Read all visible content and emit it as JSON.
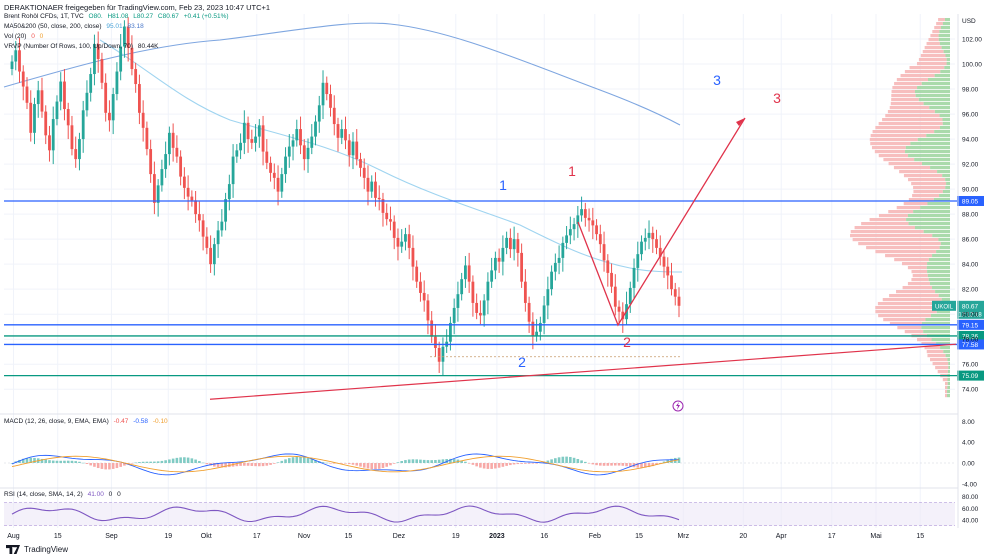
{
  "header": {
    "title": "DERAKTIONAER freigegeben für TradingView.com, Feb 23, 2023 10:47 UTC+1"
  },
  "legend": {
    "symbol": "Brent Rohöl CFDs, 1T, TVC",
    "ohlc": [
      "O80.",
      "H81.08",
      "L80.27",
      "C80.67",
      "+0.41 (+0.51%)"
    ],
    "ma": [
      "MA50&200 (50, close, 200, close)",
      "95.01",
      "83.18"
    ],
    "vol": [
      "Vol (20)",
      "0",
      "0"
    ],
    "vrvp": [
      "VRVP (Number Of Rows, 100, Up/Down, 70)",
      "80.44K"
    ],
    "macd": [
      "MACD (12, 26, close, 9, EMA, EMA)",
      "-0.47",
      "-0.58",
      "-0.10"
    ],
    "rsi": [
      "RSI (14, close, SMA, 14, 2)",
      "41.00",
      "0",
      "0"
    ]
  },
  "colors": {
    "up": "#26a69a",
    "down": "#ef5350",
    "ma50": "#9fd4f0",
    "ma200": "#7ea6e0",
    "blue_line": "#2962ff",
    "green_line": "#089981",
    "red_line": "#e0334b",
    "rsi": "#7e57c2"
  },
  "chart_data": [
    {
      "type": "candlestick",
      "title": "Brent Rohöl CFDs, 1T, TVC",
      "xlabel": "",
      "ylabel": "USD",
      "ylim": [
        72.5,
        104
      ],
      "y_ticks": [
        "102.00",
        "100.00",
        "98.00",
        "96.00",
        "94.00",
        "92.00",
        "90.00",
        "88.00",
        "86.00",
        "84.00",
        "82.00",
        "80.00",
        "78.00",
        "76.00",
        "74.00"
      ],
      "x_ticks": [
        "Aug",
        "15",
        "Sep",
        "19",
        "Okt",
        "17",
        "Nov",
        "15",
        "Dez",
        "19",
        "2023",
        "16",
        "Feb",
        "15",
        "Mrz",
        "20",
        "Apr",
        "17",
        "Mai",
        "15"
      ],
      "x_tick_dates": [
        "2022-08-01",
        "2022-08-15",
        "2022-09-01",
        "2022-09-19",
        "2022-10-01",
        "2022-10-17",
        "2022-11-01",
        "2022-11-15",
        "2022-12-01",
        "2022-12-19",
        "2023-01-01",
        "2023-01-16",
        "2023-02-01",
        "2023-02-15",
        "2023-03-01",
        "2023-03-20",
        "2023-04-01",
        "2023-04-17",
        "2023-05-01",
        "2023-05-15"
      ],
      "closes": [
        100.2,
        101.1,
        99.4,
        98.2,
        96.9,
        94.5,
        96.8,
        97.9,
        96.2,
        94.3,
        93.1,
        95.6,
        97.0,
        98.6,
        96.4,
        95.1,
        93.2,
        92.4,
        94.0,
        96.3,
        97.7,
        99.2,
        101.6,
        100.4,
        98.5,
        96.1,
        95.5,
        97.6,
        99.4,
        101.4,
        103.0,
        101.3,
        99.6,
        98.4,
        96.1,
        94.9,
        93.2,
        91.2,
        88.9,
        90.3,
        91.6,
        92.8,
        94.5,
        93.3,
        92.6,
        91.0,
        90.1,
        89.4,
        89.1,
        88.0,
        87.5,
        86.2,
        85.3,
        84.0,
        85.6,
        86.7,
        87.4,
        89.2,
        90.4,
        92.6,
        93.1,
        93.7,
        95.3,
        94.0,
        93.7,
        94.2,
        95.1,
        93.0,
        92.1,
        91.3,
        90.9,
        89.8,
        91.2,
        92.6,
        93.4,
        93.9,
        94.8,
        93.5,
        92.4,
        93.3,
        94.2,
        95.4,
        96.7,
        98.5,
        97.6,
        96.5,
        95.2,
        94.1,
        94.8,
        93.9,
        92.7,
        93.8,
        92.4,
        91.7,
        90.9,
        89.8,
        90.6,
        89.3,
        89.2,
        88.1,
        87.6,
        87.4,
        86.1,
        85.4,
        85.8,
        86.4,
        85.3,
        83.8,
        82.6,
        81.7,
        81.1,
        79.5,
        78.2,
        77.3,
        76.2,
        77.4,
        77.8,
        79.3,
        80.5,
        81.6,
        82.8,
        83.9,
        82.6,
        80.9,
        80.1,
        79.9,
        81.1,
        82.6,
        83.5,
        84.5,
        84.2,
        85.3,
        86.1,
        85.2,
        86.0,
        84.9,
        82.6,
        80.9,
        79.4,
        78.3,
        78.6,
        79.3,
        80.7,
        82.0,
        83.4,
        84.1,
        84.5,
        85.7,
        86.3,
        86.8,
        87.2,
        87.9,
        88.4,
        87.7,
        87.5,
        87.1,
        86.4,
        85.6,
        84.3,
        83.3,
        82.2,
        80.6,
        80.2,
        79.6,
        80.8,
        82.1,
        83.7,
        84.8,
        85.8,
        86.1,
        86.5,
        86.0,
        85.3,
        84.6,
        83.8,
        83.1,
        82.0,
        81.4,
        80.67
      ]
    },
    {
      "type": "line",
      "title": "MACD (12, 26, close, 9, EMA, EMA)",
      "ylim": [
        -5,
        10
      ],
      "y_ticks": [
        "8.00",
        "4.00",
        "0.00",
        "-4.00"
      ]
    },
    {
      "type": "line",
      "title": "RSI (14, close, SMA, 14, 2)",
      "ylim": [
        26,
        83
      ],
      "y_ticks": [
        "80.00",
        "60.00",
        "40.00"
      ]
    }
  ],
  "levels": [
    {
      "label": "89.05",
      "value": 89.05,
      "color": "#2962ff"
    },
    {
      "label": "79.15",
      "value": 79.15,
      "color": "#2962ff"
    },
    {
      "label": "78.26",
      "value": 78.26,
      "color": "#089981"
    },
    {
      "label": "77.58",
      "value": 77.58,
      "color": "#2962ff"
    },
    {
      "label": "75.09",
      "value": 75.09,
      "color": "#089981"
    }
  ],
  "price_tag": {
    "symbol": "UKOIL",
    "value": "80.67",
    "countdown": "12:12:18"
  },
  "annotations": {
    "blue": [
      "1",
      "2",
      "3"
    ],
    "red": [
      "1",
      "2",
      "3"
    ]
  },
  "branding": {
    "name": "TradingView"
  }
}
